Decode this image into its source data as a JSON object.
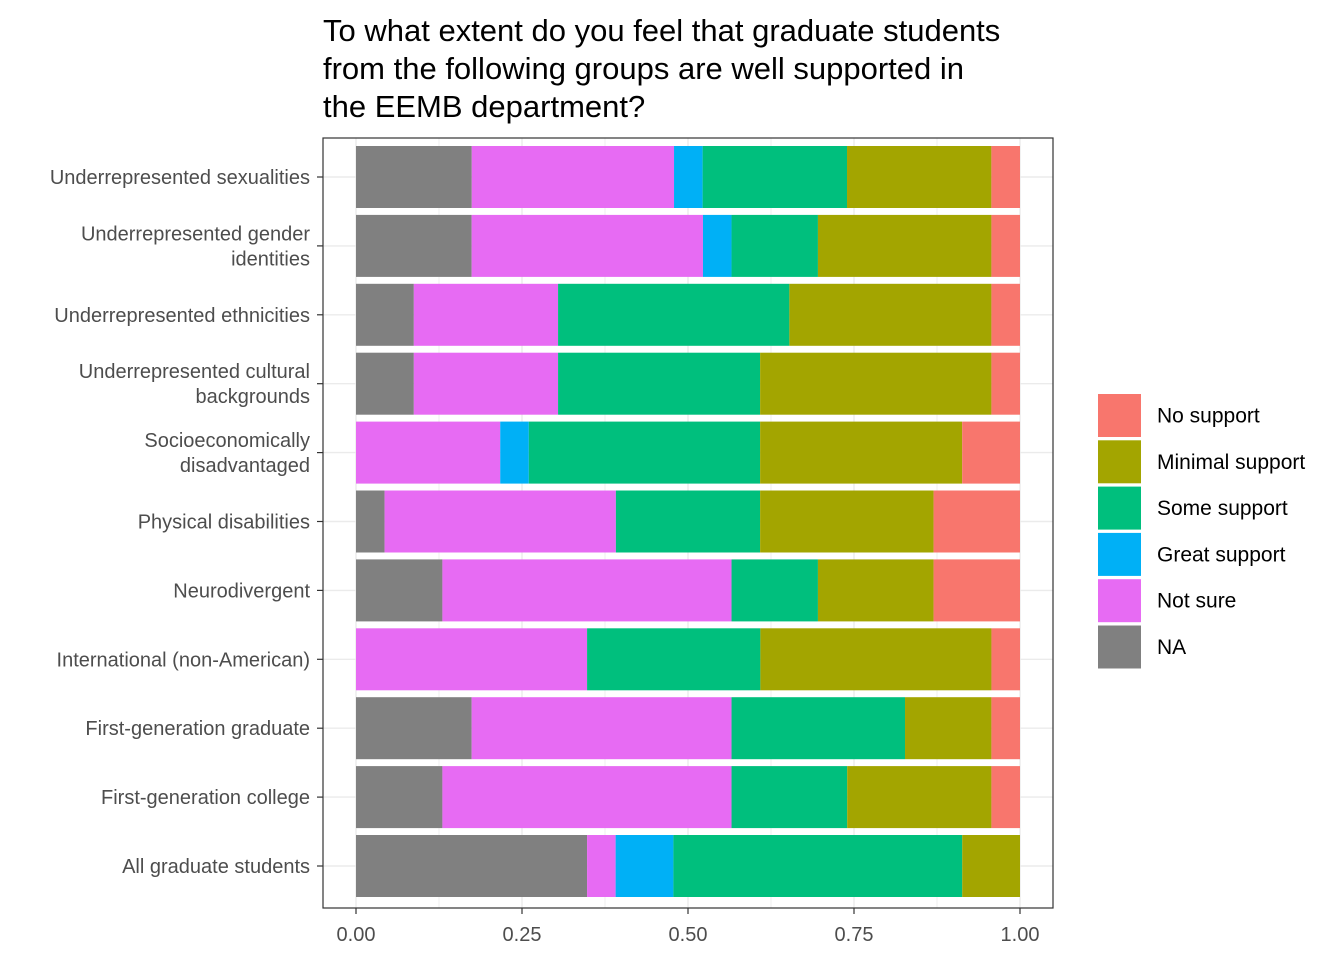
{
  "chart_data": {
    "type": "bar",
    "orientation": "horizontal",
    "stacked": true,
    "normalized": true,
    "title": "To what extent do you feel that graduate students from the following groups are well supported in the EEMB department?",
    "title_lines": [
      "To what extent do you feel that graduate students",
      "from the following groups are well supported in",
      "the EEMB department?"
    ],
    "xlabel": "",
    "ylabel": "",
    "xlim": [
      0,
      1
    ],
    "x_ticks": [
      "0.00",
      "0.25",
      "0.50",
      "0.75",
      "1.00"
    ],
    "x_tick_values": [
      0,
      0.25,
      0.5,
      0.75,
      1.0
    ],
    "grid": true,
    "legend_position": "right",
    "categories": [
      [
        "Underrepresented sexualities"
      ],
      [
        "Underrepresented gender",
        "identities"
      ],
      [
        "Underrepresented ethnicities"
      ],
      [
        "Underrepresented cultural",
        "backgrounds"
      ],
      [
        "Socioeconomically",
        "disadvantaged"
      ],
      [
        "Physical disabilities"
      ],
      [
        "Neurodivergent"
      ],
      [
        "International (non-American)"
      ],
      [
        "First-generation graduate"
      ],
      [
        "First-generation college"
      ],
      [
        "All graduate students"
      ]
    ],
    "stack_order": [
      "NA",
      "Not sure",
      "Great support",
      "Some support",
      "Minimal support",
      "No support"
    ],
    "series": [
      {
        "name": "NA",
        "color": "#808080",
        "values": [
          0.174,
          0.174,
          0.087,
          0.087,
          0.0,
          0.043,
          0.13,
          0.0,
          0.174,
          0.13,
          0.348
        ]
      },
      {
        "name": "Not sure",
        "color": "#E76BF3",
        "values": [
          0.304,
          0.348,
          0.217,
          0.217,
          0.217,
          0.348,
          0.435,
          0.348,
          0.391,
          0.435,
          0.043
        ]
      },
      {
        "name": "Great support",
        "color": "#00B0F6",
        "values": [
          0.043,
          0.043,
          0.0,
          0.0,
          0.043,
          0.0,
          0.0,
          0.0,
          0.0,
          0.0,
          0.087
        ]
      },
      {
        "name": "Some support",
        "color": "#00BF7D",
        "values": [
          0.217,
          0.13,
          0.348,
          0.304,
          0.348,
          0.217,
          0.13,
          0.261,
          0.261,
          0.174,
          0.435
        ]
      },
      {
        "name": "Minimal support",
        "color": "#A3A500",
        "values": [
          0.217,
          0.261,
          0.304,
          0.348,
          0.304,
          0.261,
          0.174,
          0.348,
          0.13,
          0.217,
          0.087
        ]
      },
      {
        "name": "No support",
        "color": "#F8766D",
        "values": [
          0.043,
          0.043,
          0.043,
          0.043,
          0.087,
          0.13,
          0.13,
          0.043,
          0.043,
          0.043,
          0.0
        ]
      }
    ],
    "legend_entries": [
      "No support",
      "Minimal support",
      "Some support",
      "Great support",
      "Not sure",
      "NA"
    ]
  }
}
